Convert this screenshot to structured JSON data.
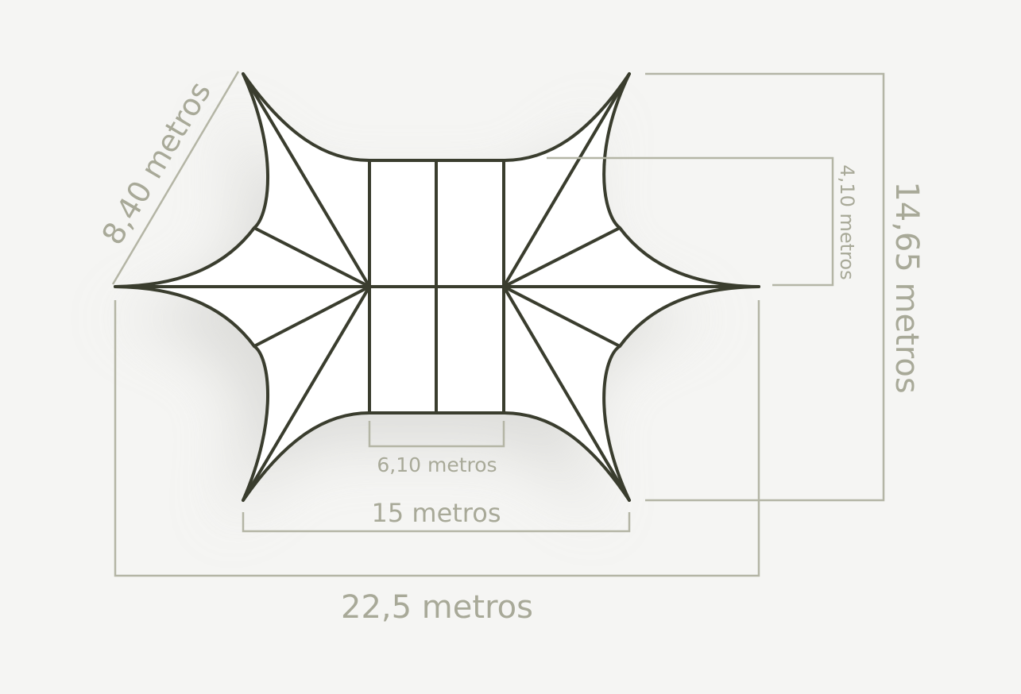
{
  "diagram": {
    "colors": {
      "background": "#f5f5f3",
      "structure": "#3a3d2e",
      "membrane": "#ffffff",
      "dimension": "#b4b5a5",
      "dimension_text": "#a8a998"
    },
    "dimensions": {
      "diagonal": "8,40 metros",
      "inner_height": "4,10 metros",
      "total_height": "14,65 metros",
      "center_width": "6,10 metros",
      "mid_width": "15 metros",
      "total_width": "22,5 metros"
    }
  }
}
